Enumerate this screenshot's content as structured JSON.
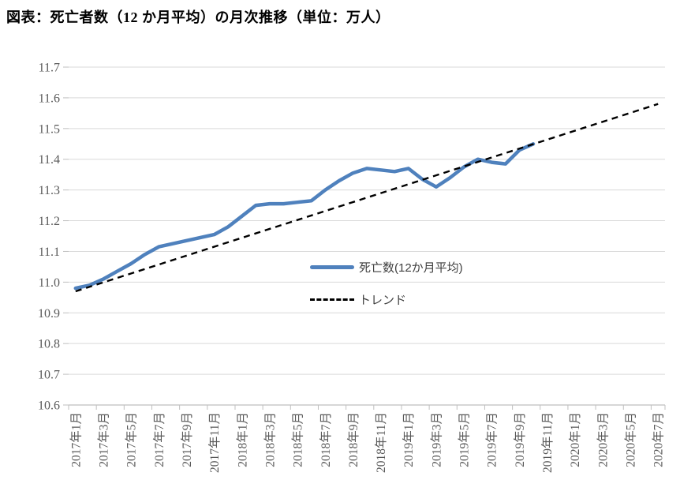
{
  "page": {
    "title": "図表：死亡者数（12 か月平均）の月次推移（単位：万人）"
  },
  "legend": {
    "deaths_label": "死亡数(12か月平均)",
    "trend_label": "トレンド"
  },
  "chart_data": {
    "type": "line",
    "title": "図表：死亡者数（12 か月平均）の月次推移（単位：万人）",
    "unit": "万人",
    "ylim": [
      10.6,
      11.7
    ],
    "y_tick_step": 0.1,
    "y_tick_labels": [
      "11.7",
      "11.6",
      "11.5",
      "11.4",
      "11.3",
      "11.2",
      "11.1",
      "11.0",
      "10.9",
      "10.8",
      "10.7",
      "10.6"
    ],
    "x_tick_labels": [
      "2017年1月",
      "2017年3月",
      "2017年5月",
      "2017年7月",
      "2017年9月",
      "2017年11月",
      "2018年1月",
      "2018年3月",
      "2018年5月",
      "2018年7月",
      "2018年9月",
      "2018年11月",
      "2019年1月",
      "2019年3月",
      "2019年5月",
      "2019年7月",
      "2019年9月",
      "2019年11月",
      "2020年1月",
      "2020年3月",
      "2020年5月",
      "2020年7月"
    ],
    "x_tick_every_months": 2,
    "x_months_total": 43,
    "x_range_labels": [
      "2017年1月",
      "2020年7月"
    ],
    "grid": true,
    "legend_position": "inside-center",
    "grid_color": "#D9D9D9",
    "axis_color": "#BFBFBF",
    "label_color": "#595959",
    "series": [
      {
        "name": "死亡数(12か月平均)",
        "style": "solid",
        "color": "#4F81BD",
        "start_month": 0,
        "first_point_label": "2017年1月",
        "last_point_label": "2019年10月",
        "values": [
          10.98,
          10.99,
          11.01,
          11.035,
          11.06,
          11.09,
          11.115,
          11.125,
          11.135,
          11.145,
          11.155,
          11.18,
          11.215,
          11.25,
          11.255,
          11.255,
          11.26,
          11.265,
          11.3,
          11.33,
          11.355,
          11.37,
          11.365,
          11.36,
          11.37,
          11.335,
          11.31,
          11.34,
          11.375,
          11.4,
          11.39,
          11.385,
          11.43,
          11.45
        ]
      },
      {
        "name": "トレンド",
        "style": "dashed",
        "color": "#000000",
        "x": [
          0,
          42
        ],
        "values": [
          10.97,
          11.58
        ]
      }
    ]
  }
}
